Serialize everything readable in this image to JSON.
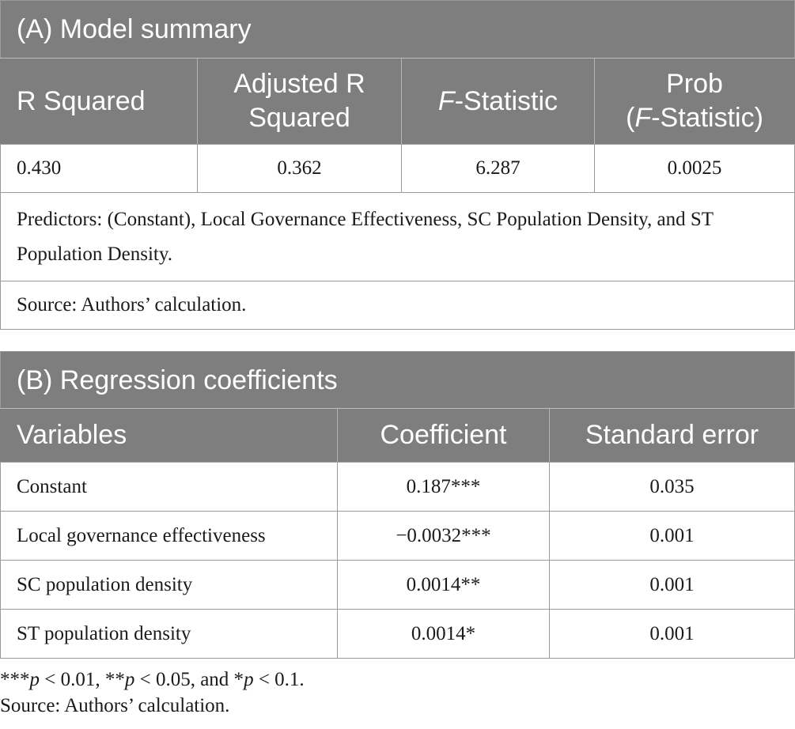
{
  "table_a": {
    "caption": "(A) Model summary",
    "headers": {
      "r_squared": "R Squared",
      "adj_line1": "Adjusted R",
      "adj_line2": "Squared",
      "f_italic": "F",
      "f_rest": "-Statistic",
      "prob_line1": "Prob",
      "prob_open": "(",
      "prob_f_italic": "F",
      "prob_rest": "-Statistic)"
    },
    "values": {
      "r_squared": "0.430",
      "adjusted_r_squared": "0.362",
      "f_statistic": "6.287",
      "prob_f_statistic": "0.0025"
    },
    "predictors_note": "Predictors: (Constant), Local Governance Effectiveness, SC Population Density, and ST Population Density.",
    "source_note": "Source: Authors’ calculation."
  },
  "table_b": {
    "caption": "(B) Regression coefficients",
    "headers": [
      "Variables",
      "Coefficient",
      "Standard error"
    ],
    "rows": [
      {
        "variable": "Constant",
        "coefficient": "0.187***",
        "std_error": "0.035"
      },
      {
        "variable": "Local governance effectiveness",
        "coefficient": "−0.0032***",
        "std_error": "0.001"
      },
      {
        "variable": "SC population density",
        "coefficient": "0.0014**",
        "std_error": "0.001"
      },
      {
        "variable": "ST population density",
        "coefficient": "0.0014*",
        "std_error": "0.001"
      }
    ]
  },
  "footnotes": {
    "sig": {
      "m1": "***",
      "p1": "p",
      "t1": " < 0.01, **",
      "p2": "p",
      "t2": " < 0.05, and *",
      "p3": "p",
      "t3": " < 0.1."
    },
    "source": "Source: Authors’ calculation."
  }
}
